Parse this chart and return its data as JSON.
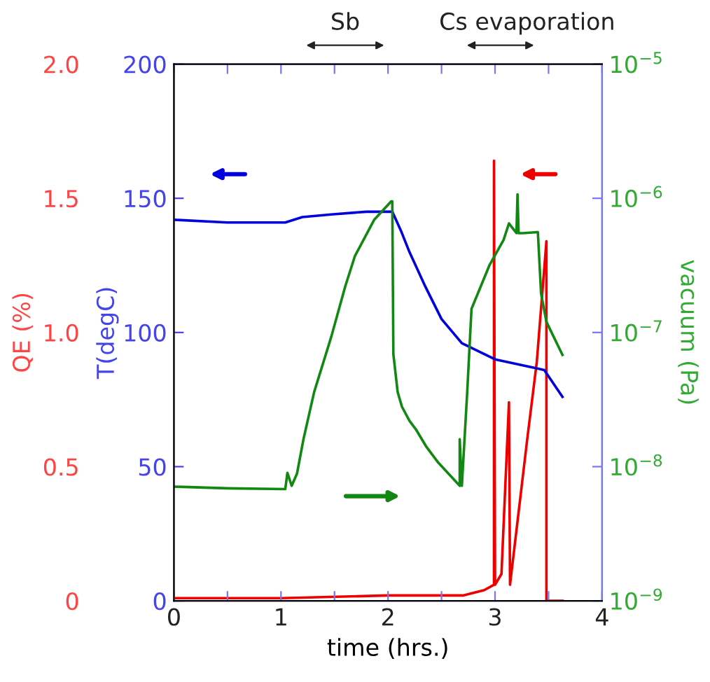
{
  "chart_data": {
    "type": "line",
    "xlabel": "time (hrs.)",
    "ylabel": "QE (%)",
    "y2label": "T(degC)",
    "y3label": "vacuum (Pa)",
    "xlim": [
      0,
      4
    ],
    "xticks": [
      0,
      {
        "value": 0.5,
        "label": null
      },
      1,
      {
        "value": 1.5,
        "label": null
      },
      2,
      {
        "value": 2.5,
        "label": null
      },
      3,
      {
        "value": 3.5,
        "label": null
      },
      4
    ],
    "ylim": [
      0,
      2
    ],
    "yticks": [
      {
        "value": 0,
        "label": "0"
      },
      {
        "value": 0.5,
        "label": "0.5"
      },
      {
        "value": 1,
        "label": "1.0"
      },
      {
        "value": 1.5,
        "label": "1.5"
      },
      {
        "value": 2,
        "label": "2.0"
      }
    ],
    "y2lim": [
      0,
      200
    ],
    "y2ticks": [
      0,
      50,
      100,
      150,
      200
    ],
    "y3lim": [
      1e-09,
      1e-05
    ],
    "y3ticks": [
      {
        "value": 1e-09,
        "label": "10$^{−9}$"
      },
      {
        "value": 1e-08,
        "label": "10$^{−8}$"
      },
      {
        "value": 1e-07,
        "label": "10$^{−7}$"
      },
      {
        "value": 1e-06,
        "label": "10$^{−6}$"
      },
      {
        "value": 1e-05,
        "label": "10$^{−5}$"
      }
    ],
    "log": "y3",
    "grid": false,
    "legend": false,
    "marker": "none",
    "line_style": "solid",
    "series": [
      {
        "axis": "y2",
        "color": "#0000dd",
        "x": [
          0,
          0.5,
          1.04,
          1.2,
          1.47,
          1.8,
          2.04,
          2.12,
          2.2,
          2.35,
          2.5,
          2.69,
          3.0,
          3.35,
          3.46,
          3.63
        ],
        "values": [
          142,
          141,
          141,
          143,
          144,
          145,
          145,
          138,
          130,
          117,
          105,
          96,
          90,
          87,
          86,
          76
        ]
      },
      {
        "axis": "y3",
        "color": "#118811",
        "x": [
          0,
          0.5,
          1.04,
          1.06,
          1.1,
          1.15,
          1.21,
          1.31,
          1.47,
          1.6,
          1.69,
          1.87,
          2.03,
          2.04,
          2.05,
          2.09,
          2.13,
          2.2,
          2.26,
          2.36,
          2.47,
          2.67,
          2.67,
          2.69,
          2.74,
          2.78,
          2.95,
          3.08,
          3.13,
          3.2,
          3.21,
          3.22,
          3.26,
          3.4,
          3.43,
          3.48,
          3.63
        ],
        "values": [
          7.1e-09,
          6.9e-09,
          6.8e-09,
          9e-09,
          7.2e-09,
          8.9e-09,
          1.6e-08,
          3.6e-08,
          9.3e-08,
          2.2e-07,
          3.7e-07,
          6.9e-07,
          9.5e-07,
          9.5e-07,
          6.9e-08,
          3.6e-08,
          2.8e-08,
          2.2e-08,
          1.9e-08,
          1.4e-08,
          1.07e-08,
          7.2e-09,
          1.6e-08,
          7.2e-09,
          3.6e-08,
          1.5e-07,
          3.2e-07,
          4.9e-07,
          6.5e-07,
          5.5e-07,
          1.07e-06,
          5.5e-07,
          5.5e-07,
          5.6e-07,
          1.95e-07,
          1.2e-07,
          6.8e-08
        ]
      },
      {
        "axis": "y",
        "color": "#ee0000",
        "x": [
          0,
          1,
          2,
          2.7,
          2.9,
          2.99,
          2.99,
          3.0,
          3.06,
          3.13,
          3.14,
          3.3,
          3.39,
          3.48,
          3.48,
          3.63
        ],
        "values": [
          0.01,
          0.01,
          0.02,
          0.02,
          0.04,
          0.06,
          1.64,
          0.06,
          0.1,
          0.74,
          0.06,
          0.6,
          0.89,
          1.34,
          0.0,
          0.0
        ]
      }
    ],
    "annotations": [
      "Sb",
      "Cs evaporation"
    ]
  }
}
